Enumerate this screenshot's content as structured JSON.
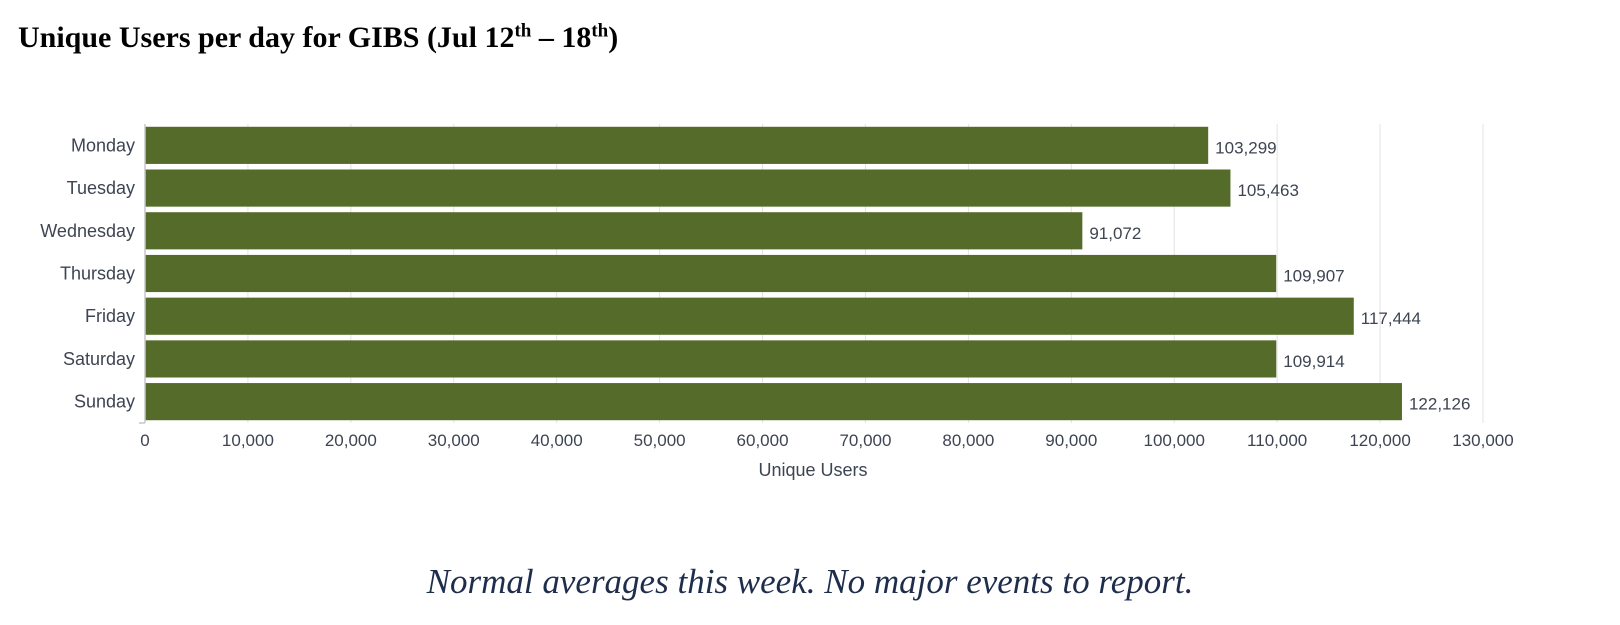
{
  "title": {
    "prefix": "Unique Users per day for GIBS (Jul 12",
    "sup1": "th",
    "middle": " – 18",
    "sup2": "th",
    "suffix": ")"
  },
  "chart_data": {
    "type": "bar",
    "orientation": "horizontal",
    "categories": [
      "Monday",
      "Tuesday",
      "Wednesday",
      "Thursday",
      "Friday",
      "Saturday",
      "Sunday"
    ],
    "values": [
      103299,
      105463,
      91072,
      109907,
      117444,
      109914,
      122126
    ],
    "value_labels": [
      "103,299",
      "105,463",
      "91,072",
      "109,907",
      "117,444",
      "109,914",
      "122,126"
    ],
    "xlabel": "Unique Users",
    "ylabel": "",
    "xlim": [
      0,
      130000
    ],
    "x_ticks": [
      0,
      10000,
      20000,
      30000,
      40000,
      50000,
      60000,
      70000,
      80000,
      90000,
      100000,
      110000,
      120000,
      130000
    ],
    "x_tick_labels": [
      "0",
      "10,000",
      "20,000",
      "30,000",
      "40,000",
      "50,000",
      "60,000",
      "70,000",
      "80,000",
      "90,000",
      "100,000",
      "110,000",
      "120,000",
      "130,000"
    ],
    "grid": true,
    "legend": "none",
    "bar_color": "#556b2a"
  },
  "caption": "Normal averages this week. No major events to report.",
  "colors": {
    "bar": "#556b2a",
    "caption": "#1f2d4d",
    "axis_text": "#3d4452",
    "grid": "#e3e3e3"
  }
}
